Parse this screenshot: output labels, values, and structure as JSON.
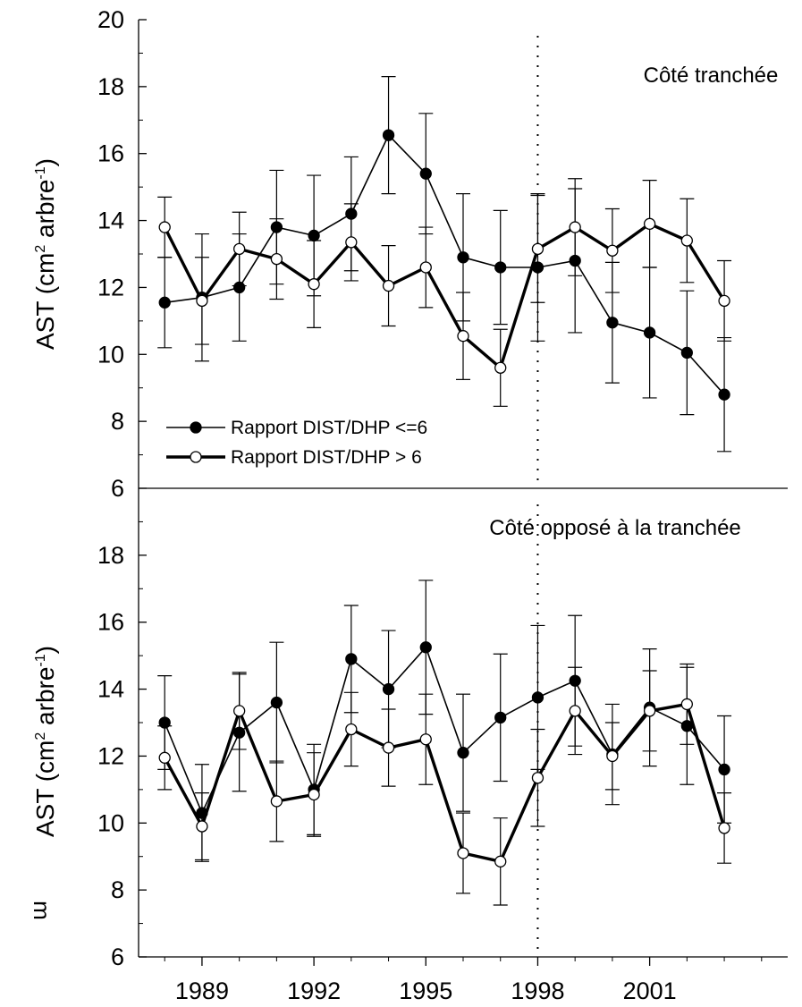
{
  "chart_data": [
    {
      "type": "line",
      "panel": "top",
      "annotation": "Côté tranchée",
      "ylabel": {
        "base": "AST (cm",
        "sup1": "2",
        "mid": " arbre",
        "sup2": "-1",
        "end": ")"
      },
      "ylim": [
        6,
        20
      ],
      "yticks": [
        6,
        8,
        10,
        12,
        14,
        16,
        18,
        20
      ],
      "xlim": [
        1987.3,
        2004.7
      ],
      "xticks": [
        1989,
        1992,
        1995,
        1998,
        2001
      ],
      "vline_x": 1998,
      "legend": {
        "placement": "bottom-left",
        "entries": [
          "Rapport DIST/DHP <=6",
          "Rapport DIST/DHP > 6"
        ]
      },
      "x": [
        1988,
        1989,
        1990,
        1991,
        1992,
        1993,
        1994,
        1995,
        1996,
        1997,
        1998,
        1999,
        2000,
        2001,
        2002,
        2003
      ],
      "series": [
        {
          "name": "Rapport DIST/DHP <=6",
          "marker": "filled",
          "values": [
            11.55,
            11.7,
            12.0,
            13.8,
            13.55,
            14.2,
            16.55,
            15.4,
            12.9,
            12.6,
            12.6,
            12.8,
            10.95,
            10.65,
            10.05,
            8.8
          ],
          "error": [
            1.35,
            1.9,
            1.6,
            1.7,
            1.8,
            1.7,
            1.75,
            1.8,
            1.9,
            1.7,
            2.2,
            2.15,
            1.8,
            1.95,
            1.85,
            1.7
          ]
        },
        {
          "name": "Rapport DIST/DHP > 6",
          "marker": "open",
          "values": [
            13.8,
            11.6,
            13.15,
            12.85,
            12.1,
            13.35,
            12.05,
            12.6,
            10.55,
            9.6,
            13.15,
            13.8,
            13.1,
            13.9,
            13.4,
            11.6
          ],
          "error": [
            0.9,
            1.3,
            1.1,
            1.2,
            1.3,
            1.15,
            1.2,
            1.2,
            1.3,
            1.15,
            1.6,
            1.45,
            1.25,
            1.3,
            1.25,
            1.2
          ]
        }
      ]
    },
    {
      "type": "line",
      "panel": "bottom",
      "annotation": "Côté opposé à la tranchée",
      "ylabel": {
        "base": "AST (cm",
        "sup1": "2",
        "mid": " arbre",
        "sup2": "-1",
        "end": ")"
      },
      "ylim": [
        6,
        20
      ],
      "yticks": [
        6,
        8,
        10,
        12,
        14,
        16,
        18
      ],
      "xlim": [
        1987.3,
        2004.7
      ],
      "xticks": [
        1989,
        1992,
        1995,
        1998,
        2001
      ],
      "xticklabels": [
        "1989",
        "1992",
        "1995",
        "1998",
        "2001"
      ],
      "vline_x": 1998,
      "x": [
        1988,
        1989,
        1990,
        1991,
        1992,
        1993,
        1994,
        1995,
        1996,
        1997,
        1998,
        1999,
        2000,
        2001,
        2002,
        2003
      ],
      "series": [
        {
          "name": "Rapport DIST/DHP <=6",
          "marker": "filled",
          "values": [
            13.0,
            10.3,
            12.7,
            13.6,
            11.0,
            14.9,
            14.0,
            15.25,
            12.1,
            13.15,
            13.75,
            14.25,
            12.05,
            13.45,
            12.9,
            11.6
          ],
          "error": [
            1.4,
            1.45,
            1.75,
            1.8,
            1.35,
            1.6,
            1.75,
            2.0,
            1.75,
            1.9,
            2.15,
            1.95,
            1.5,
            1.75,
            1.75,
            1.6
          ]
        },
        {
          "name": "Rapport DIST/DHP > 6",
          "marker": "open",
          "values": [
            11.95,
            9.9,
            13.35,
            10.65,
            10.85,
            12.8,
            12.25,
            12.5,
            9.1,
            8.85,
            11.35,
            13.35,
            12.0,
            13.35,
            13.55,
            9.85
          ],
          "error": [
            0.95,
            1.0,
            1.15,
            1.2,
            1.25,
            1.1,
            1.15,
            1.35,
            1.2,
            1.3,
            1.45,
            1.3,
            1.0,
            1.2,
            1.2,
            1.05
          ]
        }
      ]
    }
  ],
  "stray_glyph": "m"
}
